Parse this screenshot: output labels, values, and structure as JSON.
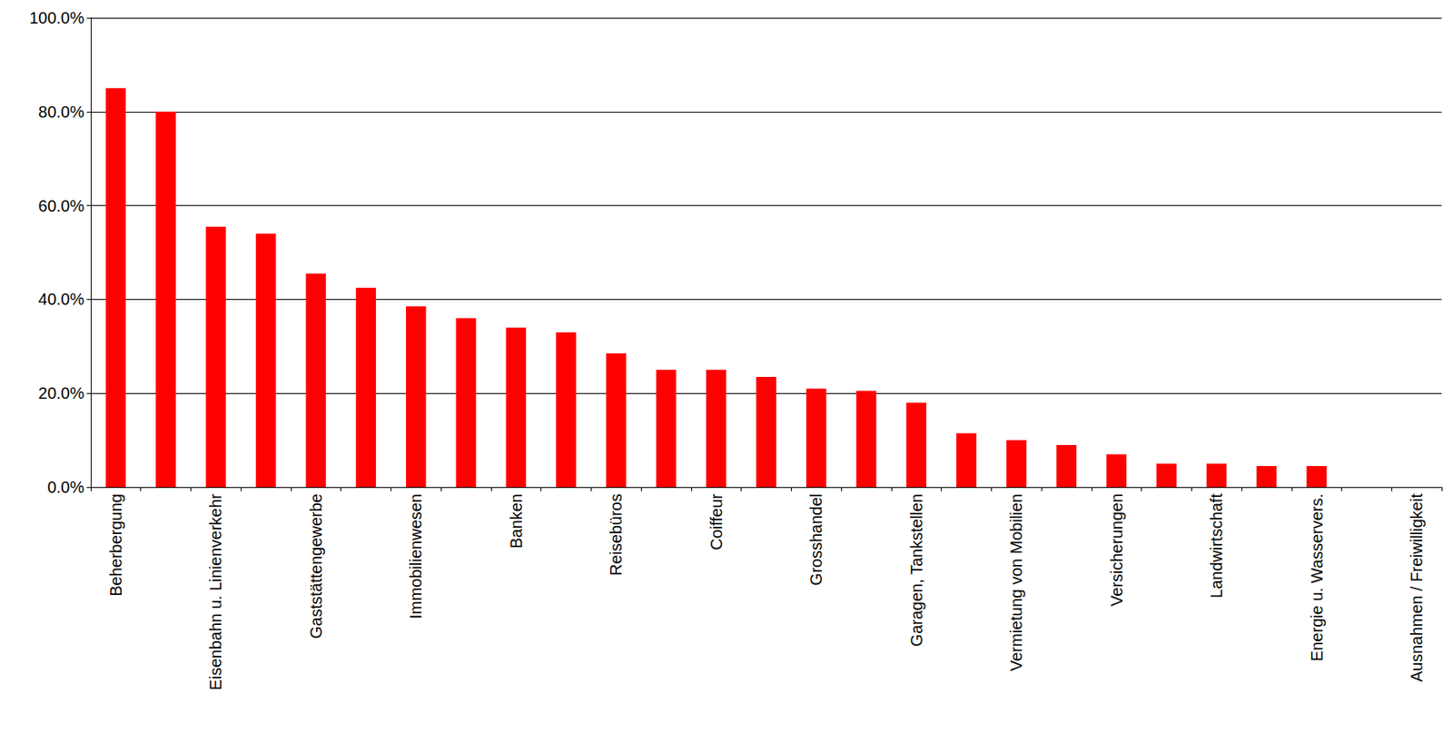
{
  "chart_data": {
    "type": "bar",
    "categories": [
      "Beherbergung",
      null,
      "Eisenbahn u. Linienverkehr",
      null,
      "Gaststättengewerbe",
      null,
      "Immobilienwesen",
      null,
      "Banken",
      null,
      "Reisebüros",
      null,
      "Coiffeur",
      null,
      "Grosshandel",
      null,
      "Garagen, Tankstellen",
      null,
      "Vermietung von Mobilien",
      null,
      "Versicherungen",
      null,
      "Landwirtschaft",
      null,
      "Energie u. Wasservers.",
      null,
      "Ausnahmen / Freiwilligkeit"
    ],
    "values": [
      85,
      80,
      55.5,
      54,
      45.5,
      42.5,
      38.5,
      36,
      34,
      33,
      28.5,
      25,
      25,
      23.5,
      21,
      20.5,
      18,
      11.5,
      10,
      9,
      7,
      5,
      5,
      4.5,
      4.5,
      0,
      0
    ],
    "color": "#ff0000",
    "ylim": [
      0,
      100
    ],
    "yticks": [
      {
        "value": 0,
        "label": "0.0%"
      },
      {
        "value": 20,
        "label": "20.0%"
      },
      {
        "value": 40,
        "label": "40.0%"
      },
      {
        "value": 60,
        "label": "60.0%"
      },
      {
        "value": 80,
        "label": "80.0%"
      },
      {
        "value": 100,
        "label": "100.0%"
      }
    ],
    "grid": true,
    "data_labels": false
  }
}
